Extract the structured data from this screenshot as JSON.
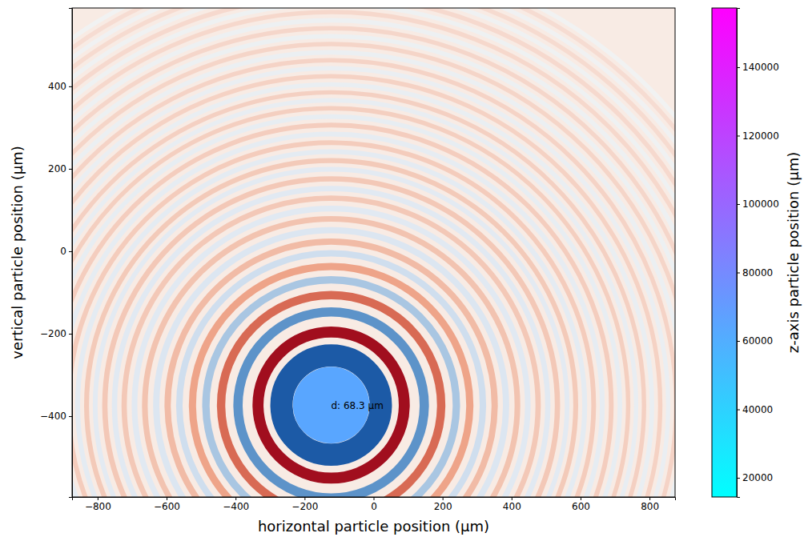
{
  "chart_data": {
    "type": "scatter",
    "xlabel": "horizontal particle position (µm)",
    "ylabel": "vertical particle position (µm)",
    "xlim": [
      -874,
      874
    ],
    "ylim": [
      -596,
      590
    ],
    "xticks": [
      {
        "value": -800,
        "label": "−800"
      },
      {
        "value": -600,
        "label": "−600"
      },
      {
        "value": -400,
        "label": "−400"
      },
      {
        "value": -200,
        "label": "−200"
      },
      0,
      200,
      400,
      600,
      800
    ],
    "yticks": [
      {
        "value": -400,
        "label": "−400"
      },
      {
        "value": -200,
        "label": "−200"
      },
      0,
      200,
      400
    ],
    "grid": false,
    "x": [
      -123
    ],
    "y": [
      -373
    ],
    "z": [
      64000
    ],
    "size": [
      68.3
    ],
    "size_labels": [
      "d: 68.3 µm"
    ],
    "colorbar": {
      "label": "z-axis particle position (µm)",
      "lim": [
        14400,
        157300
      ],
      "ticks": [
        20000,
        40000,
        60000,
        80000,
        100000,
        120000,
        140000
      ]
    },
    "rings": {
      "radii": [
        144,
        212,
        270,
        319,
        363,
        402,
        440,
        474,
        507,
        540,
        570,
        600,
        628,
        656,
        684,
        709,
        735,
        761,
        786,
        812,
        837,
        861,
        884,
        907,
        930,
        954,
        977,
        1000,
        1023,
        1047,
        1070,
        1093,
        1116,
        1140,
        1163,
        1186,
        1210,
        1233,
        1256,
        1279,
        1302
      ],
      "colors": [
        "#1c5aa6",
        "#a10e1e",
        "#5d93c9",
        "#d86a54",
        "#a9c6e2",
        "#eea489",
        "#cfdeee",
        "#f1bba6",
        "#dce6f1",
        "#f2c3b0",
        "#e1e9f2",
        "#f3c8b7",
        "#e1e9f2",
        "#f3c8b7",
        "#e3eaf2",
        "#f3cab9",
        "#e4ebf2",
        "#f4ccbc",
        "#e6ecf2",
        "#f4cdbe",
        "#e7edf2",
        "#f4cfc0",
        "#e8edf2",
        "#f4d0c2",
        "#e9eef2",
        "#f5d2c4",
        "#eaeef2",
        "#f5d3c6",
        "#ebeff2",
        "#f5d5c8",
        "#ecf0f2",
        "#f5d6ca",
        "#edf0f2",
        "#f6d8cc",
        "#eef1f2",
        "#f6d9ce",
        "#eff1f2",
        "#f6dbd0",
        "#f0f1f2",
        "#f6dcd2",
        "#f1f2f2"
      ]
    }
  }
}
